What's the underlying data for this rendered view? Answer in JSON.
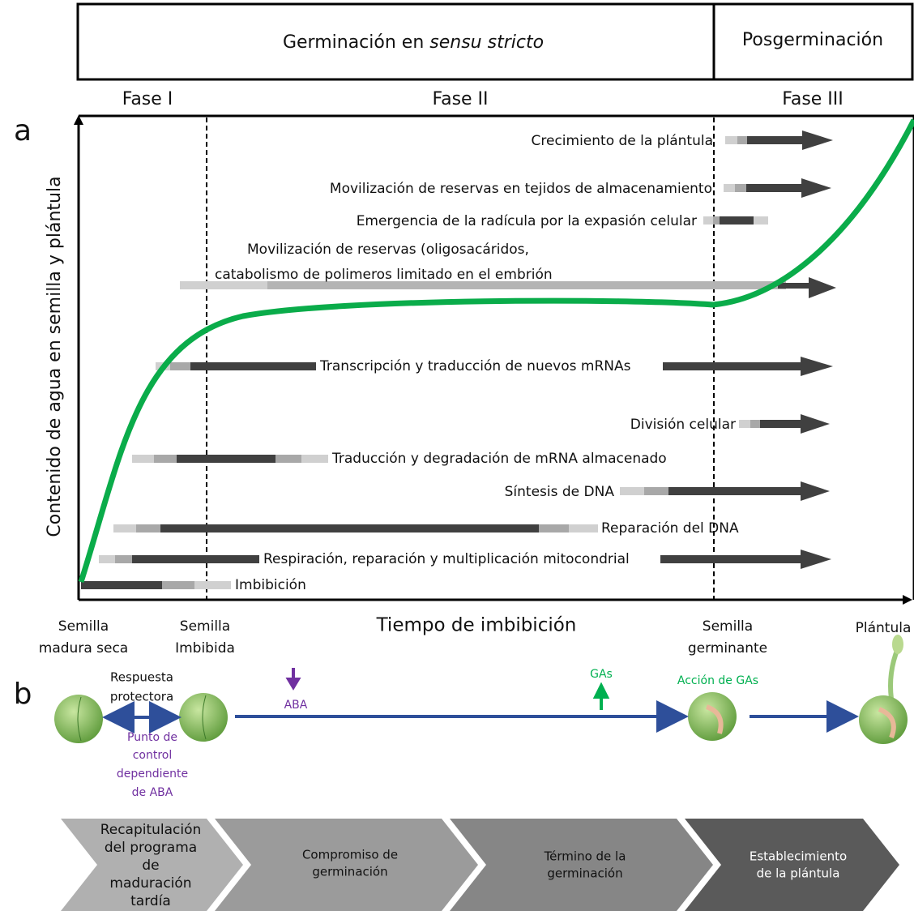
{
  "header": {
    "stage1_prefix": "Germinación en ",
    "stage1_italic": "sensu stricto",
    "stage2": "Posgerminación"
  },
  "phases": [
    "Fase I",
    "Fase II",
    "Fase III"
  ],
  "panel_a": {
    "label": "a",
    "y_axis": "Contenido de agua en semilla y plántula",
    "x_axis": "Tiempo de imbibición",
    "processes": [
      {
        "lines": [
          "Crecimiento de la plántula"
        ]
      },
      {
        "lines": [
          "Movilización de reservas en tejidos de almacenamiento"
        ]
      },
      {
        "lines": [
          "Emergencia de la radícula por la expasión celular"
        ]
      },
      {
        "lines": [
          "Movilización de reservas (oligosacáridos,",
          "catabolismo de polimeros limitado en el embrión"
        ]
      },
      {
        "lines": [
          "Transcripción y traducción de nuevos mRNAs"
        ]
      },
      {
        "lines": [
          "División celular"
        ]
      },
      {
        "lines": [
          "Traducción y degradación de mRNA almacenado"
        ]
      },
      {
        "lines": [
          "Síntesis de DNA"
        ]
      },
      {
        "lines": [
          "Reparación del DNA"
        ]
      },
      {
        "lines": [
          "Respiración, reparación y multiplicación mitocondrial"
        ]
      },
      {
        "lines": [
          "Imbibición"
        ]
      }
    ]
  },
  "milestones": [
    {
      "lines": [
        "Semilla",
        "madura seca"
      ]
    },
    {
      "lines": [
        "Semilla",
        "Imbibida"
      ]
    },
    {
      "lines": [
        "Semilla",
        "germinante"
      ]
    },
    {
      "lines": [
        "Plántula"
      ]
    }
  ],
  "panel_b": {
    "label": "b",
    "protective": [
      "Respuesta",
      "protectora"
    ],
    "checkpoint": [
      "Punto de",
      "control",
      "dependiente",
      "de ABA"
    ],
    "aba": "ABA",
    "gas": "GAs",
    "gas_action": "Acción de GAs"
  },
  "chevrons": [
    {
      "lines": [
        "Recapitulación",
        "del programa",
        "de",
        "maduración",
        "tardía"
      ]
    },
    {
      "lines": [
        "Compromiso de",
        "germinación"
      ]
    },
    {
      "lines": [
        "Término de la",
        "germinación"
      ]
    },
    {
      "lines": [
        "Establecimiento",
        "de la plántula"
      ]
    }
  ]
}
